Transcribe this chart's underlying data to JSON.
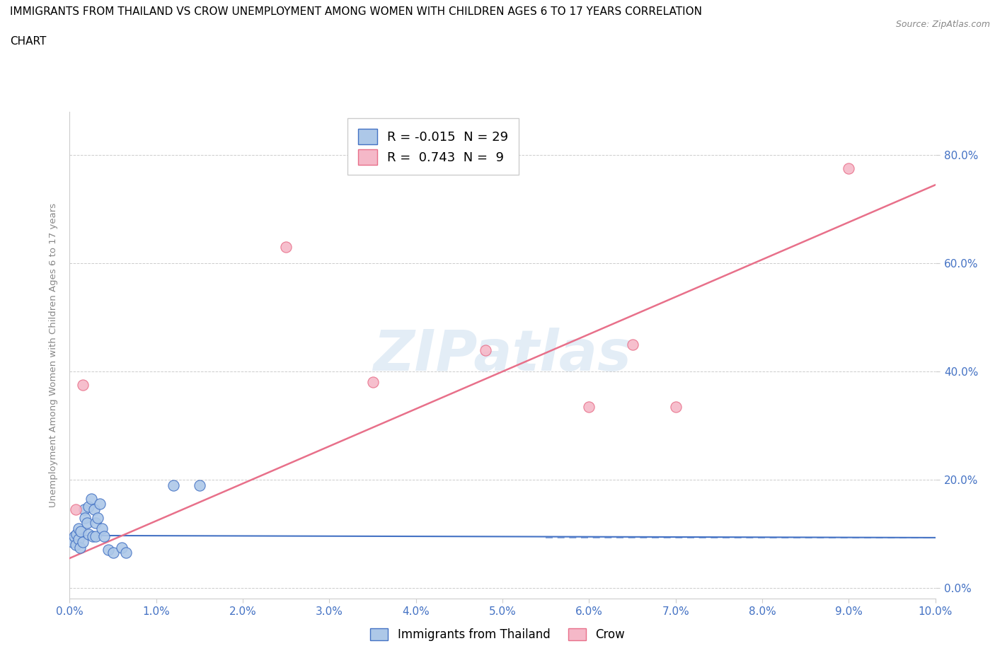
{
  "title_line1": "IMMIGRANTS FROM THAILAND VS CROW UNEMPLOYMENT AMONG WOMEN WITH CHILDREN AGES 6 TO 17 YEARS CORRELATION",
  "title_line2": "CHART",
  "source": "Source: ZipAtlas.com",
  "ylabel": "Unemployment Among Women with Children Ages 6 to 17 years",
  "xlabel_ticks": [
    "0.0%",
    "1.0%",
    "2.0%",
    "3.0%",
    "4.0%",
    "5.0%",
    "6.0%",
    "7.0%",
    "8.0%",
    "9.0%",
    "10.0%"
  ],
  "ylabel_ticks": [
    "0.0%",
    "20.0%",
    "40.0%",
    "60.0%",
    "80.0%"
  ],
  "xlim": [
    0.0,
    0.1
  ],
  "ylim": [
    -0.02,
    0.88
  ],
  "blue_R": -0.015,
  "blue_N": 29,
  "pink_R": 0.743,
  "pink_N": 9,
  "legend_label_blue": "Immigrants from Thailand",
  "legend_label_pink": "Crow",
  "blue_color": "#adc8e8",
  "pink_color": "#f5b8c8",
  "blue_line_color": "#4472c4",
  "pink_line_color": "#e8708a",
  "watermark": "ZIPatlas",
  "blue_points_x": [
    0.0003,
    0.0005,
    0.0007,
    0.0008,
    0.001,
    0.001,
    0.0012,
    0.0013,
    0.0015,
    0.0017,
    0.0018,
    0.002,
    0.0022,
    0.0022,
    0.0025,
    0.0027,
    0.0028,
    0.003,
    0.003,
    0.0032,
    0.0035,
    0.0037,
    0.004,
    0.0045,
    0.005,
    0.006,
    0.0065,
    0.012,
    0.015
  ],
  "blue_points_y": [
    0.085,
    0.095,
    0.08,
    0.1,
    0.09,
    0.11,
    0.075,
    0.105,
    0.085,
    0.145,
    0.13,
    0.12,
    0.15,
    0.1,
    0.165,
    0.095,
    0.145,
    0.12,
    0.095,
    0.13,
    0.155,
    0.11,
    0.095,
    0.07,
    0.065,
    0.075,
    0.065,
    0.19,
    0.19
  ],
  "pink_points_x": [
    0.0007,
    0.0015,
    0.025,
    0.035,
    0.048,
    0.06,
    0.065,
    0.07,
    0.09
  ],
  "pink_points_y": [
    0.145,
    0.375,
    0.63,
    0.38,
    0.44,
    0.335,
    0.45,
    0.335,
    0.775
  ],
  "blue_trend_x": [
    0.0,
    0.1
  ],
  "blue_trend_y": [
    0.097,
    0.093
  ],
  "pink_trend_x": [
    0.0,
    0.1
  ],
  "pink_trend_y": [
    0.055,
    0.745
  ]
}
